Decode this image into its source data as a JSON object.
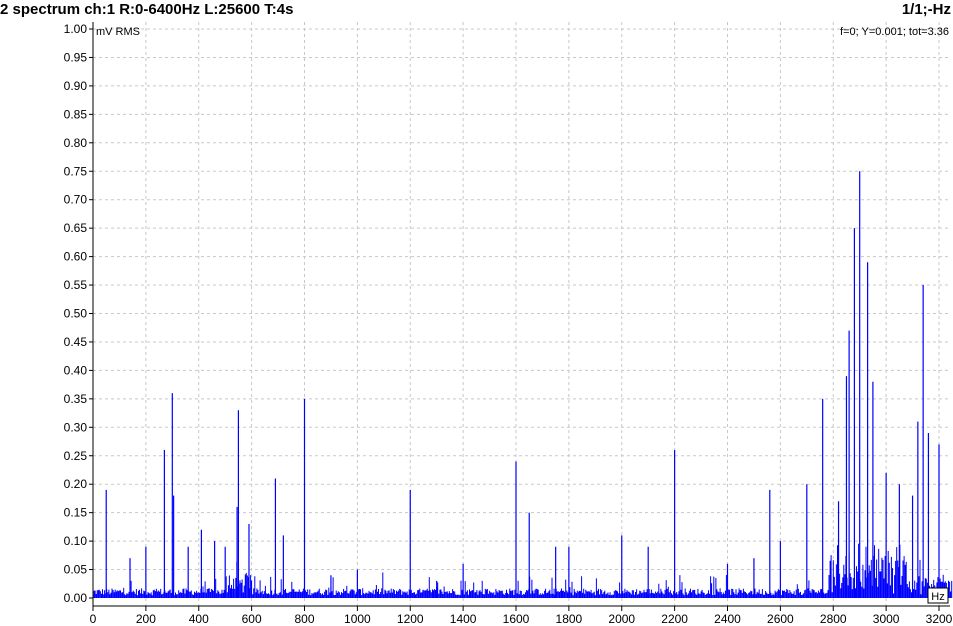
{
  "header": {
    "title": "2 spectrum ch:1 R:0-6400Hz L:25600 T:4s",
    "page_info": "1/1;-Hz"
  },
  "chart_data": {
    "type": "bar",
    "ylabel": "mV RMS",
    "xunit": "Hz",
    "readout": "f=0; Y=0.001; tot=3.36",
    "xlim": [
      0,
      3200
    ],
    "ylim": [
      0,
      1.0
    ],
    "xticks": [
      0,
      200,
      400,
      600,
      800,
      1000,
      1200,
      1400,
      1600,
      1800,
      2000,
      2200,
      2400,
      2600,
      2800,
      3000,
      3200
    ],
    "yticks": [
      0.0,
      0.05,
      0.1,
      0.15,
      0.2,
      0.25,
      0.3,
      0.35,
      0.4,
      0.45,
      0.5,
      0.55,
      0.6,
      0.65,
      0.7,
      0.75,
      0.8,
      0.85,
      0.9,
      0.95,
      1.0
    ],
    "grid": true,
    "color": "#0000ff",
    "peaks": [
      {
        "x": 50,
        "y": 0.19
      },
      {
        "x": 140,
        "y": 0.07
      },
      {
        "x": 200,
        "y": 0.09
      },
      {
        "x": 270,
        "y": 0.26
      },
      {
        "x": 300,
        "y": 0.36
      },
      {
        "x": 305,
        "y": 0.18
      },
      {
        "x": 360,
        "y": 0.09
      },
      {
        "x": 410,
        "y": 0.12
      },
      {
        "x": 460,
        "y": 0.1
      },
      {
        "x": 500,
        "y": 0.09
      },
      {
        "x": 550,
        "y": 0.33
      },
      {
        "x": 545,
        "y": 0.16
      },
      {
        "x": 590,
        "y": 0.13
      },
      {
        "x": 690,
        "y": 0.21
      },
      {
        "x": 720,
        "y": 0.11
      },
      {
        "x": 800,
        "y": 0.35
      },
      {
        "x": 900,
        "y": 0.04
      },
      {
        "x": 1000,
        "y": 0.05
      },
      {
        "x": 1200,
        "y": 0.19
      },
      {
        "x": 1300,
        "y": 0.03
      },
      {
        "x": 1400,
        "y": 0.06
      },
      {
        "x": 1600,
        "y": 0.24
      },
      {
        "x": 1650,
        "y": 0.15
      },
      {
        "x": 1750,
        "y": 0.09
      },
      {
        "x": 1800,
        "y": 0.09
      },
      {
        "x": 2000,
        "y": 0.11
      },
      {
        "x": 2100,
        "y": 0.09
      },
      {
        "x": 2200,
        "y": 0.26
      },
      {
        "x": 2400,
        "y": 0.06
      },
      {
        "x": 2500,
        "y": 0.07
      },
      {
        "x": 2560,
        "y": 0.19
      },
      {
        "x": 2600,
        "y": 0.1
      },
      {
        "x": 2700,
        "y": 0.2
      },
      {
        "x": 2760,
        "y": 0.35
      },
      {
        "x": 2820,
        "y": 0.17
      },
      {
        "x": 2850,
        "y": 0.39
      },
      {
        "x": 2860,
        "y": 0.47
      },
      {
        "x": 2880,
        "y": 0.65
      },
      {
        "x": 2900,
        "y": 0.75
      },
      {
        "x": 2930,
        "y": 0.59
      },
      {
        "x": 2950,
        "y": 0.38
      },
      {
        "x": 3000,
        "y": 0.22
      },
      {
        "x": 3050,
        "y": 0.2
      },
      {
        "x": 3100,
        "y": 0.18
      },
      {
        "x": 3120,
        "y": 0.31
      },
      {
        "x": 3140,
        "y": 0.55
      },
      {
        "x": 3160,
        "y": 0.29
      },
      {
        "x": 3200,
        "y": 0.27
      }
    ]
  }
}
